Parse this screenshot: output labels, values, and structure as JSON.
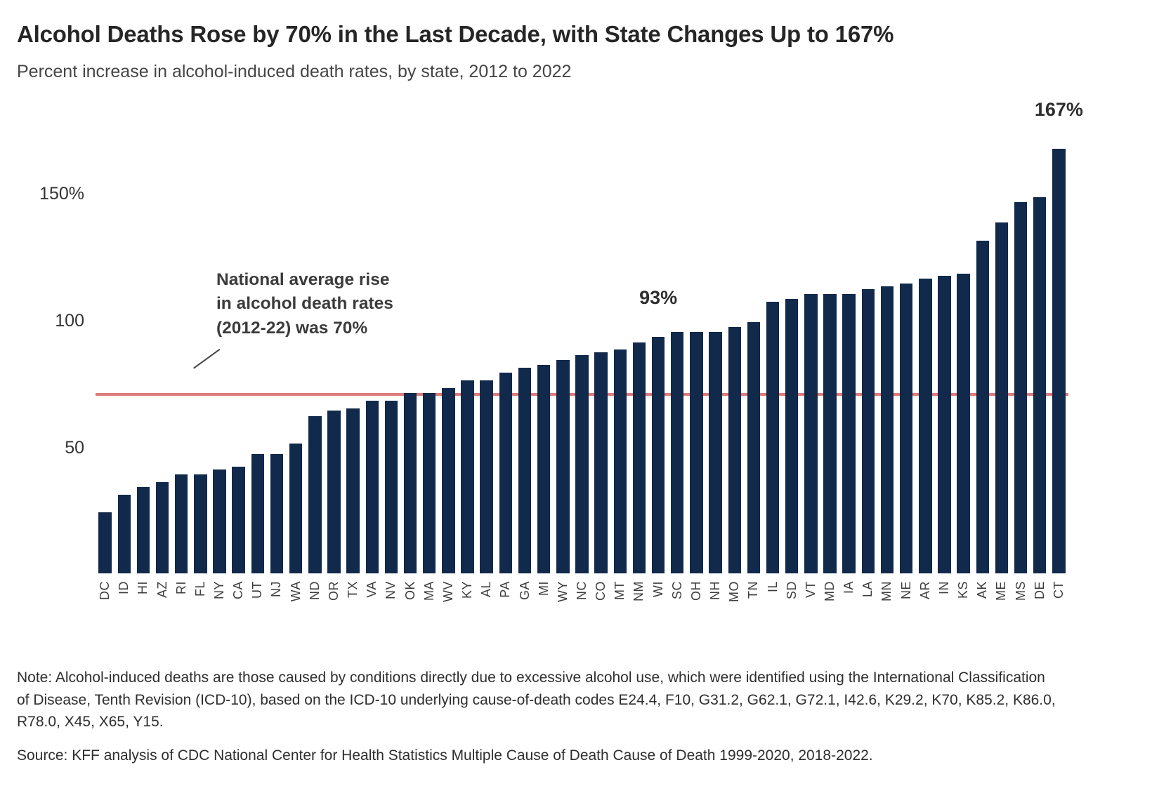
{
  "header": {
    "title": "Alcohol Deaths Rose by 70% in the Last Decade, with State Changes Up to 167%",
    "subtitle": "Percent increase in alcohol-induced death rates, by state, 2012 to 2022"
  },
  "chart_data": {
    "type": "bar",
    "categories": [
      "DC",
      "ID",
      "HI",
      "AZ",
      "RI",
      "FL",
      "NY",
      "CA",
      "UT",
      "NJ",
      "WA",
      "ND",
      "OR",
      "TX",
      "VA",
      "NV",
      "OK",
      "MA",
      "WV",
      "KY",
      "AL",
      "PA",
      "GA",
      "MI",
      "WY",
      "NC",
      "CO",
      "MT",
      "NM",
      "WI",
      "SC",
      "OH",
      "NH",
      "MO",
      "TN",
      "IL",
      "SD",
      "VT",
      "MD",
      "IA",
      "LA",
      "MN",
      "NE",
      "AR",
      "IN",
      "KS",
      "AK",
      "ME",
      "MS",
      "DE",
      "CT"
    ],
    "values": [
      24,
      31,
      34,
      36,
      39,
      39,
      41,
      42,
      47,
      47,
      51,
      62,
      64,
      65,
      68,
      68,
      71,
      71,
      73,
      76,
      76,
      79,
      81,
      82,
      84,
      86,
      87,
      88,
      91,
      93,
      95,
      95,
      95,
      97,
      99,
      107,
      108,
      110,
      110,
      110,
      112,
      113,
      114,
      116,
      117,
      118,
      131,
      138,
      146,
      148,
      167
    ],
    "title": "Percent increase in alcohol-induced death rates, by state, 2012 to 2022",
    "xlabel": "",
    "ylabel": "",
    "ylim": [
      0,
      171
    ],
    "grid": "off",
    "legend": "none",
    "y_ticks": [
      {
        "value": 50,
        "label": "50"
      },
      {
        "value": 100,
        "label": "100"
      },
      {
        "value": 150,
        "label": "150%"
      }
    ],
    "colors": {
      "bar": "#11294B",
      "reference_line": "#DC7B7B"
    },
    "reference_line": {
      "value": 70,
      "color": "#DC7B7B",
      "annotation": "National average rise\nin alcohol death rates\n(2012-22) was 70%"
    },
    "annotations": [
      {
        "text": "93%",
        "index": 29
      },
      {
        "text": "167%",
        "index": 50
      }
    ]
  },
  "footer": {
    "note": "Note: Alcohol-induced deaths are those caused by conditions directly due to excessive alcohol use, which were identified using the International Classification of Disease, Tenth Revision (ICD-10), based on the ICD-10 underlying cause-of-death codes E24.4, F10, G31.2, G62.1, G72.1, I42.6, K29.2, K70, K85.2, K86.0, R78.0, X45, X65, Y15.",
    "source": "Source: KFF analysis of CDC National Center for Health Statistics Multiple Cause of Death Cause of Death 1999-2020, 2018-2022."
  }
}
